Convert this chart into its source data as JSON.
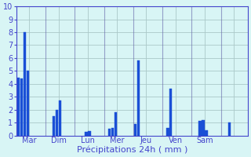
{
  "bars": [
    {
      "day": "Mar",
      "values": [
        4.5,
        4.4,
        8.0,
        5.0,
        0.0,
        0.0,
        0.0,
        0.0
      ]
    },
    {
      "day": "Dim",
      "values": [
        0.0,
        0.0,
        1.5,
        2.0,
        2.7,
        0.0,
        0.0,
        0.0
      ]
    },
    {
      "day": "Lun",
      "values": [
        0.0,
        0.0,
        0.0,
        0.3,
        0.35,
        0.0,
        0.0,
        0.0
      ]
    },
    {
      "day": "Mer",
      "values": [
        0.0,
        0.5,
        0.6,
        1.8,
        0.0,
        0.0,
        0.0,
        0.0
      ]
    },
    {
      "day": "Jeu",
      "values": [
        0.9,
        5.8,
        0.0,
        0.0,
        0.0,
        0.0,
        0.0,
        0.0
      ]
    },
    {
      "day": "Ven",
      "values": [
        0.0,
        0.6,
        3.6,
        0.0,
        0.0,
        0.0,
        0.0,
        0.0
      ]
    },
    {
      "day": "Sam",
      "values": [
        0.0,
        0.0,
        1.1,
        1.2,
        0.4,
        0.0,
        0.0,
        0.0
      ]
    },
    {
      "day": "",
      "values": [
        0.0,
        0.0,
        1.0,
        0.0,
        0.0,
        0.0,
        0.0,
        0.0
      ]
    }
  ],
  "bar_color": "#1a4fd6",
  "bar_edge_color": "#1a4fd6",
  "bg_color": "#d8f5f5",
  "grid_color": "#aac8c8",
  "sep_color": "#6666aa",
  "axis_color": "#4444cc",
  "xlabel": "Précipitations 24h ( mm )",
  "ylim": [
    0,
    10
  ],
  "yticks": [
    0,
    1,
    2,
    3,
    4,
    5,
    6,
    7,
    8,
    9,
    10
  ],
  "figsize": [
    3.2,
    2.0
  ],
  "dpi": 100
}
